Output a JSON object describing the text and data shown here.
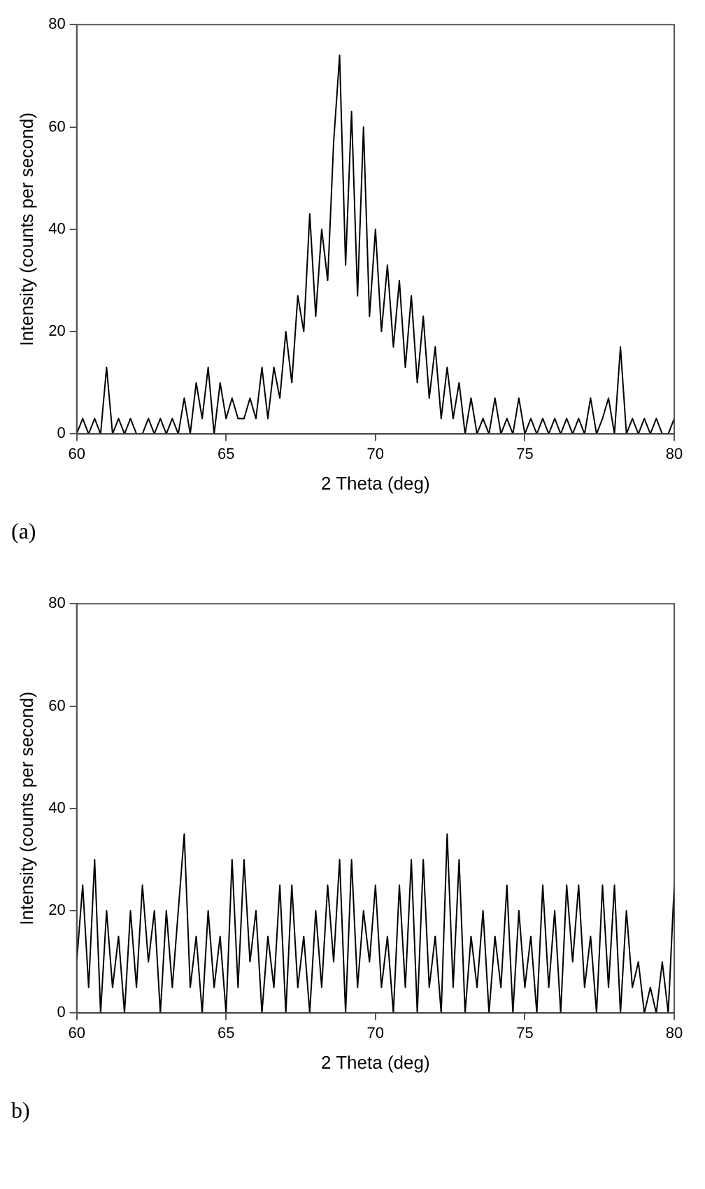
{
  "chart_data": [
    {
      "type": "line",
      "xlabel": "2 Theta (deg)",
      "ylabel": "Intensity (counts per second)",
      "annotations": [
        "(a)"
      ],
      "marker": "none",
      "xlim": [
        60,
        80
      ],
      "ylim": [
        0,
        80
      ],
      "xticks": [
        60,
        65,
        70,
        75,
        80
      ],
      "yticks": [
        0,
        20,
        40,
        60,
        80
      ],
      "x": [
        60,
        60.2,
        60.4,
        60.6,
        60.8,
        61,
        61.2,
        61.4,
        61.6,
        61.8,
        62,
        62.2,
        62.4,
        62.6,
        62.8,
        63,
        63.2,
        63.4,
        63.6,
        63.8,
        64,
        64.2,
        64.4,
        64.6,
        64.8,
        65,
        65.2,
        65.4,
        65.6,
        65.8,
        66,
        66.2,
        66.4,
        66.6,
        66.8,
        67,
        67.2,
        67.4,
        67.6,
        67.8,
        68,
        68.2,
        68.4,
        68.6,
        68.8,
        69,
        69.2,
        69.4,
        69.6,
        69.8,
        70,
        70.2,
        70.4,
        70.6,
        70.8,
        71,
        71.2,
        71.4,
        71.6,
        71.8,
        72,
        72.2,
        72.4,
        72.6,
        72.8,
        73,
        73.2,
        73.4,
        73.6,
        73.8,
        74,
        74.2,
        74.4,
        74.6,
        74.8,
        75,
        75.2,
        75.4,
        75.6,
        75.8,
        76,
        76.2,
        76.4,
        76.6,
        76.8,
        77,
        77.2,
        77.4,
        77.6,
        77.8,
        78,
        78.2,
        78.4,
        78.6,
        78.8,
        79,
        79.2,
        79.4,
        79.6,
        79.8,
        80
      ],
      "series": [
        {
          "color": "#000000",
          "values": [
            0,
            3,
            0,
            3,
            0,
            13,
            0,
            3,
            0,
            3,
            0,
            0,
            3,
            0,
            3,
            0,
            3,
            0,
            7,
            0,
            10,
            3,
            13,
            0,
            10,
            3,
            7,
            3,
            3,
            7,
            3,
            13,
            3,
            13,
            7,
            20,
            10,
            27,
            20,
            43,
            23,
            40,
            30,
            57,
            74,
            33,
            63,
            27,
            60,
            23,
            40,
            20,
            33,
            17,
            30,
            13,
            27,
            10,
            23,
            7,
            17,
            3,
            13,
            3,
            10,
            0,
            7,
            0,
            3,
            0,
            7,
            0,
            3,
            0,
            7,
            0,
            3,
            0,
            3,
            0,
            3,
            0,
            3,
            0,
            3,
            0,
            7,
            0,
            3,
            7,
            0,
            17,
            0,
            3,
            0,
            3,
            0,
            3,
            0,
            0,
            3
          ]
        }
      ]
    },
    {
      "type": "line",
      "xlabel": "2 Theta (deg)",
      "ylabel": "Intensity (counts per second)",
      "annotations": [
        "b)"
      ],
      "marker": "none",
      "xlim": [
        60,
        80
      ],
      "ylim": [
        0,
        80
      ],
      "xticks": [
        60,
        65,
        70,
        75,
        80
      ],
      "yticks": [
        0,
        20,
        40,
        60,
        80
      ],
      "x": [
        60,
        60.2,
        60.4,
        60.6,
        60.8,
        61,
        61.2,
        61.4,
        61.6,
        61.8,
        62,
        62.2,
        62.4,
        62.6,
        62.8,
        63,
        63.2,
        63.4,
        63.6,
        63.8,
        64,
        64.2,
        64.4,
        64.6,
        64.8,
        65,
        65.2,
        65.4,
        65.6,
        65.8,
        66,
        66.2,
        66.4,
        66.6,
        66.8,
        67,
        67.2,
        67.4,
        67.6,
        67.8,
        68,
        68.2,
        68.4,
        68.6,
        68.8,
        69,
        69.2,
        69.4,
        69.6,
        69.8,
        70,
        70.2,
        70.4,
        70.6,
        70.8,
        71,
        71.2,
        71.4,
        71.6,
        71.8,
        72,
        72.2,
        72.4,
        72.6,
        72.8,
        73,
        73.2,
        73.4,
        73.6,
        73.8,
        74,
        74.2,
        74.4,
        74.6,
        74.8,
        75,
        75.2,
        75.4,
        75.6,
        75.8,
        76,
        76.2,
        76.4,
        76.6,
        76.8,
        77,
        77.2,
        77.4,
        77.6,
        77.8,
        78,
        78.2,
        78.4,
        78.6,
        78.8,
        79,
        79.2,
        79.4,
        79.6,
        79.8,
        80
      ],
      "series": [
        {
          "color": "#000000",
          "values": [
            10,
            25,
            5,
            30,
            0,
            20,
            5,
            15,
            0,
            20,
            5,
            25,
            10,
            20,
            0,
            20,
            5,
            20,
            35,
            5,
            15,
            0,
            20,
            5,
            15,
            0,
            30,
            5,
            30,
            10,
            20,
            0,
            15,
            5,
            25,
            0,
            25,
            5,
            15,
            0,
            20,
            5,
            25,
            10,
            30,
            0,
            30,
            5,
            20,
            10,
            25,
            5,
            15,
            0,
            25,
            5,
            30,
            0,
            30,
            5,
            15,
            0,
            35,
            5,
            30,
            0,
            15,
            5,
            20,
            0,
            15,
            5,
            25,
            0,
            20,
            5,
            15,
            0,
            25,
            5,
            20,
            0,
            25,
            10,
            25,
            5,
            15,
            0,
            25,
            5,
            25,
            0,
            20,
            5,
            10,
            0,
            5,
            0,
            10,
            0,
            25
          ]
        }
      ]
    }
  ]
}
